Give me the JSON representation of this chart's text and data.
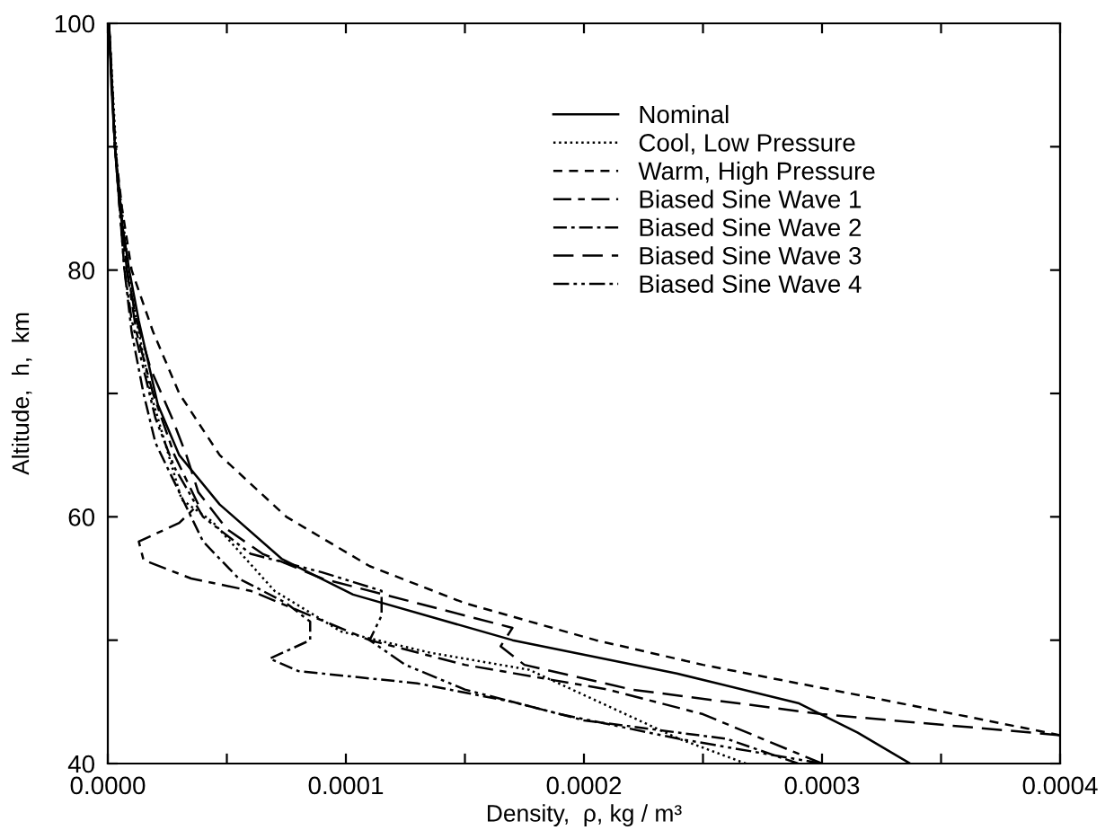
{
  "chart_data": {
    "type": "line",
    "xlabel": "Density,  ρ, kg / m³",
    "ylabel": "Altitude,  h,  km",
    "xlim": [
      0,
      0.0004
    ],
    "ylim": [
      40,
      100
    ],
    "xticks": [
      {
        "value": 0,
        "label": "0.0000"
      },
      {
        "value": 5e-05,
        "label": null
      },
      {
        "value": 0.0001,
        "label": "0.0001"
      },
      {
        "value": 0.00015,
        "label": null
      },
      {
        "value": 0.0002,
        "label": "0.0002"
      },
      {
        "value": 0.00025,
        "label": null
      },
      {
        "value": 0.0003,
        "label": "0.0003"
      },
      {
        "value": 0.00035,
        "label": null
      },
      {
        "value": 0.0004,
        "label": "0.0004"
      }
    ],
    "yticks": [
      40,
      {
        "value": 50,
        "label": null
      },
      60,
      {
        "value": 70,
        "label": null
      },
      80,
      {
        "value": 90,
        "label": null
      },
      100
    ],
    "grid": false,
    "legend": "top right",
    "series": [
      {
        "name": "Nominal",
        "color": "#000000",
        "line_style": "solid",
        "x": [
          0.000337,
          0.000315,
          0.00029,
          0.000239,
          0.00017,
          0.000103,
          7.3e-05,
          4.7e-05,
          3e-05,
          2.1e-05,
          1.3e-05,
          9e-06,
          5e-06,
          3e-06,
          1.5e-06,
          5e-07
        ],
        "values": [
          40,
          42.5,
          44.9,
          47.3,
          50,
          53.7,
          56.6,
          61,
          65,
          69.1,
          75.9,
          80,
          85,
          90,
          95,
          100
        ]
      },
      {
        "name": "Cool, Low Pressure",
        "color": "#000000",
        "line_style": "dotted",
        "x": [
          0.000268,
          0.00024,
          0.000177,
          0.000135,
          9.8e-05,
          7e-05,
          4.4e-05,
          3.1e-05,
          1.8e-05,
          1e-05,
          4e-06,
          5e-07
        ],
        "values": [
          40,
          42,
          47.6,
          49,
          50.7,
          54,
          59.6,
          61.4,
          70,
          78,
          88,
          100
        ]
      },
      {
        "name": "Warm, High Pressure",
        "color": "#000000",
        "line_style": "dashed",
        "x": [
          0.0004,
          0.00033,
          0.00025,
          0.000205,
          0.00015,
          0.00011,
          7.5e-05,
          4.7e-05,
          3e-05,
          1.9e-05,
          1e-05,
          6e-06,
          3e-06,
          5e-07
        ],
        "values": [
          42.3,
          45,
          48,
          50,
          53,
          56,
          60,
          65,
          70,
          75,
          80,
          85,
          90,
          100
        ]
      },
      {
        "name": "Biased Sine Wave 1",
        "color": "#000000",
        "line_style": "dashdot",
        "x": [
          0.0003,
          0.000275,
          0.00025,
          0.00021,
          0.00015,
          0.00011,
          8.5e-05,
          6e-05,
          3.5e-05,
          1.5e-05,
          1.3e-05,
          3e-05,
          3.8e-05,
          2.8e-05,
          1.9e-05,
          1.2e-05,
          8e-06,
          3e-06,
          5e-07
        ],
        "values": [
          40,
          42,
          44,
          46,
          48,
          50,
          52,
          54,
          55,
          56.5,
          58,
          59.5,
          61,
          65,
          70,
          75,
          80,
          90,
          100
        ]
      },
      {
        "name": "Biased Sine Wave 2",
        "color": "#000000",
        "line_style": "dashdotted",
        "x": [
          0.00029,
          0.00026,
          0.0002,
          0.00017,
          0.00013,
          8e-05,
          6.8e-05,
          8.5e-05,
          8.5e-05,
          7.5e-05,
          5.5e-05,
          4e-05,
          3e-05,
          2e-05,
          1.5e-05,
          1e-05,
          7e-06,
          3e-06,
          5e-07
        ],
        "values": [
          40,
          42,
          43.5,
          45,
          46.5,
          47.5,
          48.5,
          50,
          51.5,
          53,
          55,
          58,
          62,
          66,
          70,
          75,
          80,
          90,
          100
        ]
      },
      {
        "name": "Biased Sine Wave 3",
        "color": "#000000",
        "line_style": "longdash",
        "x": [
          0.0004,
          0.0003,
          0.00022,
          0.000175,
          0.000165,
          0.00017,
          0.00013,
          9e-05,
          6.5e-05,
          5e-05,
          3.8e-05,
          3.3e-05,
          2.7e-05,
          1.8e-05,
          1.2e-05,
          8e-06,
          3e-06,
          5e-07
        ],
        "values": [
          42.3,
          44,
          46,
          48,
          49.5,
          51,
          53,
          55,
          57,
          59,
          62,
          65,
          68,
          72,
          76,
          80,
          90,
          100
        ]
      },
      {
        "name": "Biased Sine Wave 4",
        "color": "#000000",
        "line_style": "dashdotdot",
        "x": [
          0.0003,
          0.00024,
          0.00019,
          0.00015,
          0.000125,
          0.00011,
          0.000115,
          0.000115,
          9e-05,
          6e-05,
          4e-05,
          2.8e-05,
          2e-05,
          1.5e-05,
          1e-05,
          7e-06,
          3e-06,
          5e-07
        ],
        "values": [
          40,
          42,
          44,
          46,
          48,
          50,
          52,
          54,
          55.5,
          57,
          60,
          64,
          68,
          72,
          76,
          80,
          90,
          100
        ]
      }
    ]
  }
}
